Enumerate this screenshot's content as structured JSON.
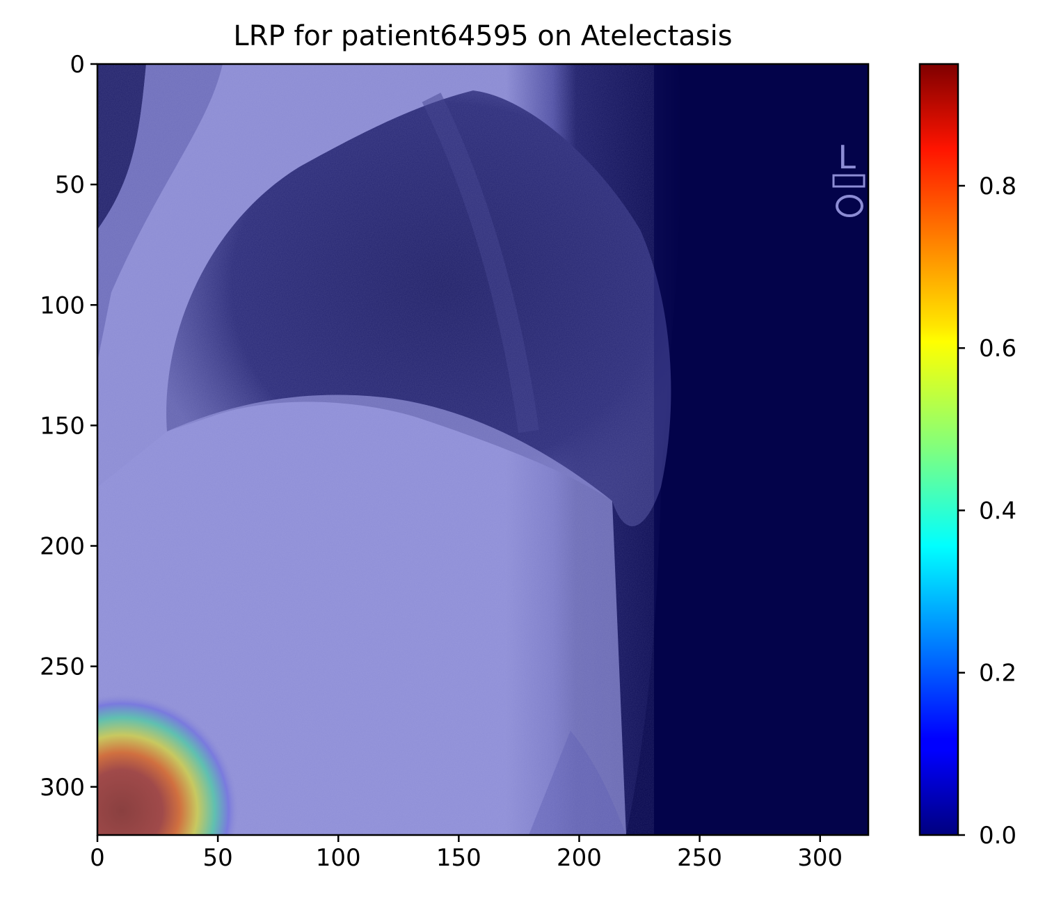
{
  "chart_data": {
    "type": "heatmap",
    "title": "LRP for patient64595 on Atelectasis",
    "xlabel": "",
    "ylabel": "",
    "image_size": [
      320,
      320
    ],
    "xlim": [
      0,
      320
    ],
    "ylim": [
      320,
      0
    ],
    "x_ticks": [
      0,
      50,
      100,
      150,
      200,
      250,
      300
    ],
    "y_ticks": [
      0,
      50,
      100,
      150,
      200,
      250,
      300
    ],
    "colormap": "jet",
    "colorbar": {
      "range": [
        0.0,
        0.95
      ],
      "ticks": [
        0.0,
        0.2,
        0.4,
        0.6,
        0.8
      ],
      "tick_labels": [
        "0.0",
        "0.2",
        "0.4",
        "0.6",
        "0.8"
      ]
    },
    "hotspots": [
      {
        "x": 10,
        "y": 310,
        "peak": 0.95,
        "radius": 22
      }
    ],
    "underlay": "lateral chest x-ray, overlaid with relevance map",
    "marker_text": "L"
  },
  "colors": {
    "overlay_base": "#8f8fd6",
    "background_dark": "#03034a",
    "jet_low": "#00007f",
    "jet_high": "#7f0000"
  }
}
